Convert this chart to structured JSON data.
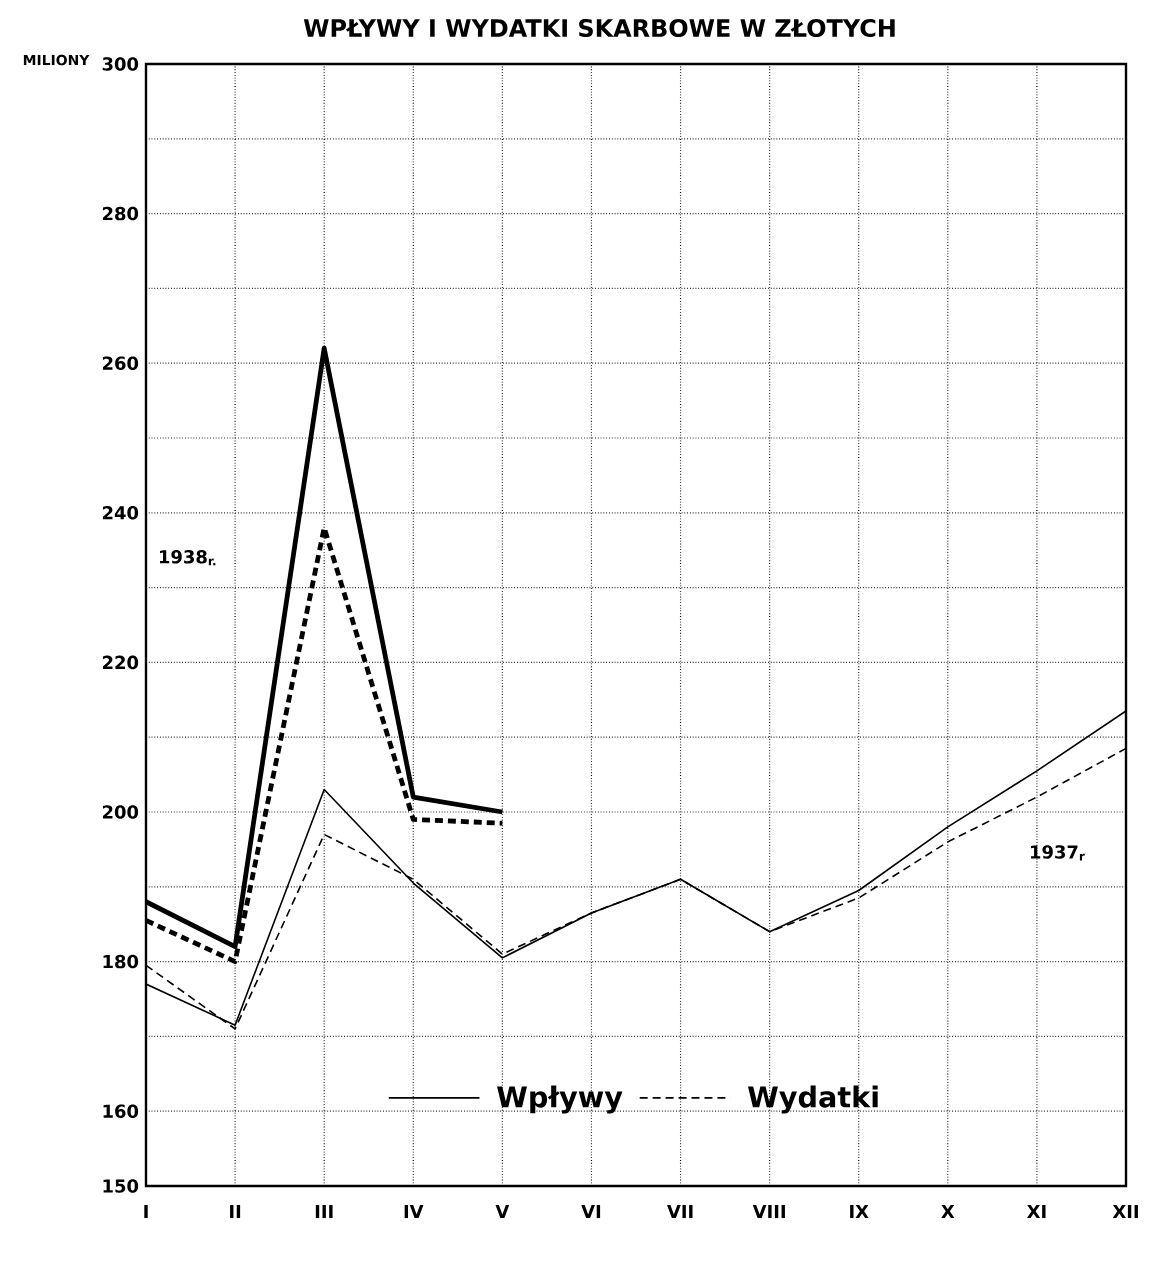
{
  "chart_data": {
    "type": "line",
    "title": "WPŁYWY I WYDATKI SKARBOWE W ZŁOTYCH",
    "ylabel": "MILIONY",
    "categories": [
      "I",
      "II",
      "III",
      "IV",
      "V",
      "VI",
      "VII",
      "VIII",
      "IX",
      "X",
      "XI",
      "XII"
    ],
    "series": [
      {
        "color": "#000000",
        "line_style": "solid",
        "values": [
          188,
          182,
          262,
          202,
          200,
          null,
          null,
          null,
          null,
          null,
          null,
          null
        ]
      },
      {
        "color": "#000000",
        "line_style": "dashed",
        "values": [
          185.5,
          180,
          238,
          199,
          198.5,
          null,
          null,
          null,
          null,
          null,
          null,
          null
        ]
      },
      {
        "name": "Wpływy",
        "color": "#000000",
        "line_style": "solid",
        "values": [
          177,
          171.5,
          203,
          190.5,
          180.5,
          186.5,
          191,
          184,
          189.5,
          198,
          205.5,
          213.5
        ]
      },
      {
        "name": "Wydatki",
        "color": "#000000",
        "line_style": "dashed",
        "values": [
          179.5,
          171,
          197,
          191,
          181,
          186.5,
          191,
          184,
          188.5,
          196,
          202,
          208.5
        ]
      }
    ],
    "ylim": [
      150,
      300
    ],
    "yticks": [
      150,
      160,
      {
        "value": 170,
        "label": null
      },
      180,
      {
        "value": 190,
        "label": null
      },
      200,
      {
        "value": 210,
        "label": null
      },
      220,
      {
        "value": 230,
        "label": null
      },
      240,
      {
        "value": 250,
        "label": null
      },
      260,
      {
        "value": 270,
        "label": null
      },
      280,
      {
        "value": 290,
        "label": null
      },
      300
    ],
    "grid": true,
    "legend": "bottom",
    "marker": "none",
    "annotations": [
      "1938$_{r.}$",
      "1937$_{r}$"
    ]
  }
}
